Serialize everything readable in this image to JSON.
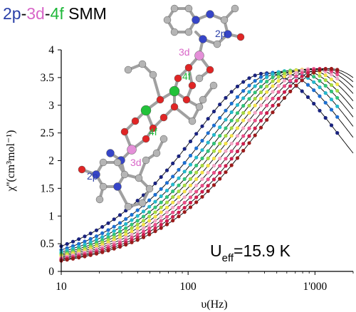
{
  "title": {
    "parts": [
      {
        "text": "2p",
        "color": "#2a3fa8"
      },
      {
        "text": "-",
        "color": "#000000"
      },
      {
        "text": "3d",
        "color": "#d866c8"
      },
      {
        "text": "-",
        "color": "#000000"
      },
      {
        "text": "4f",
        "color": "#1fb83a"
      },
      {
        "text": " SMM",
        "color": "#000000"
      }
    ]
  },
  "annotation": "U<sub>eff</sub>=15.9 K",
  "annotation_parts": {
    "main": "U",
    "sub": "eff",
    "rest": "=15.9 K"
  },
  "structure_labels": {
    "2p_top": "2p",
    "3d_top": "3d",
    "4f_top": "4f",
    "4f_bottom": "4f",
    "3d_bottom": "3d",
    "2p_bottom": "2p"
  },
  "colors": {
    "label_2p": "#2a3fa8",
    "label_3d": "#d866c8",
    "label_4f": "#1fb83a",
    "atom_C": "#b5b5b5",
    "atom_N": "#3645c8",
    "atom_O": "#e02525",
    "atom_Cu": "#e48fd8",
    "atom_Ln": "#22c23a",
    "bond": "#a0a0a0"
  },
  "chart_data": {
    "type": "scatter",
    "xscale": "log",
    "xlim": [
      10,
      2000
    ],
    "ylim": [
      0,
      4
    ],
    "xlabel": "υ(Hz)",
    "ylabel": "χ''(cm³mol⁻¹)",
    "xticks": [
      {
        "v": 10,
        "label": "10"
      },
      {
        "v": 100,
        "label": "100"
      },
      {
        "v": 1000,
        "label": "1'000"
      }
    ],
    "yticks": [
      {
        "v": 0,
        "label": "0"
      },
      {
        "v": 0.5,
        "label": "0.5"
      },
      {
        "v": 1,
        "label": "1"
      },
      {
        "v": 1.5,
        "label": "1.5"
      },
      {
        "v": 2,
        "label": "2"
      },
      {
        "v": 2.5,
        "label": "2.5"
      },
      {
        "v": 3,
        "label": "3"
      },
      {
        "v": 3.5,
        "label": "3.5"
      },
      {
        "v": 4,
        "label": "4"
      }
    ],
    "fit_color": "#000000",
    "series": [
      {
        "peak_freq": 420,
        "peak_chi": 3.58,
        "color": "#1a237e"
      },
      {
        "peak_freq": 520,
        "peak_chi": 3.6,
        "color": "#1e6fd0"
      },
      {
        "peak_freq": 600,
        "peak_chi": 3.62,
        "color": "#26b8cc"
      },
      {
        "peak_freq": 680,
        "peak_chi": 3.63,
        "color": "#33c27a"
      },
      {
        "peak_freq": 760,
        "peak_chi": 3.64,
        "color": "#a6d943"
      },
      {
        "peak_freq": 850,
        "peak_chi": 3.65,
        "color": "#f2e04a"
      },
      {
        "peak_freq": 950,
        "peak_chi": 3.66,
        "color": "#f1a7c6"
      },
      {
        "peak_freq": 1060,
        "peak_chi": 3.66,
        "color": "#e8508a"
      },
      {
        "peak_freq": 1180,
        "peak_chi": 3.66,
        "color": "#cc1f4f"
      },
      {
        "peak_freq": 1300,
        "peak_chi": 3.66,
        "color": "#9b1b1b"
      }
    ]
  }
}
